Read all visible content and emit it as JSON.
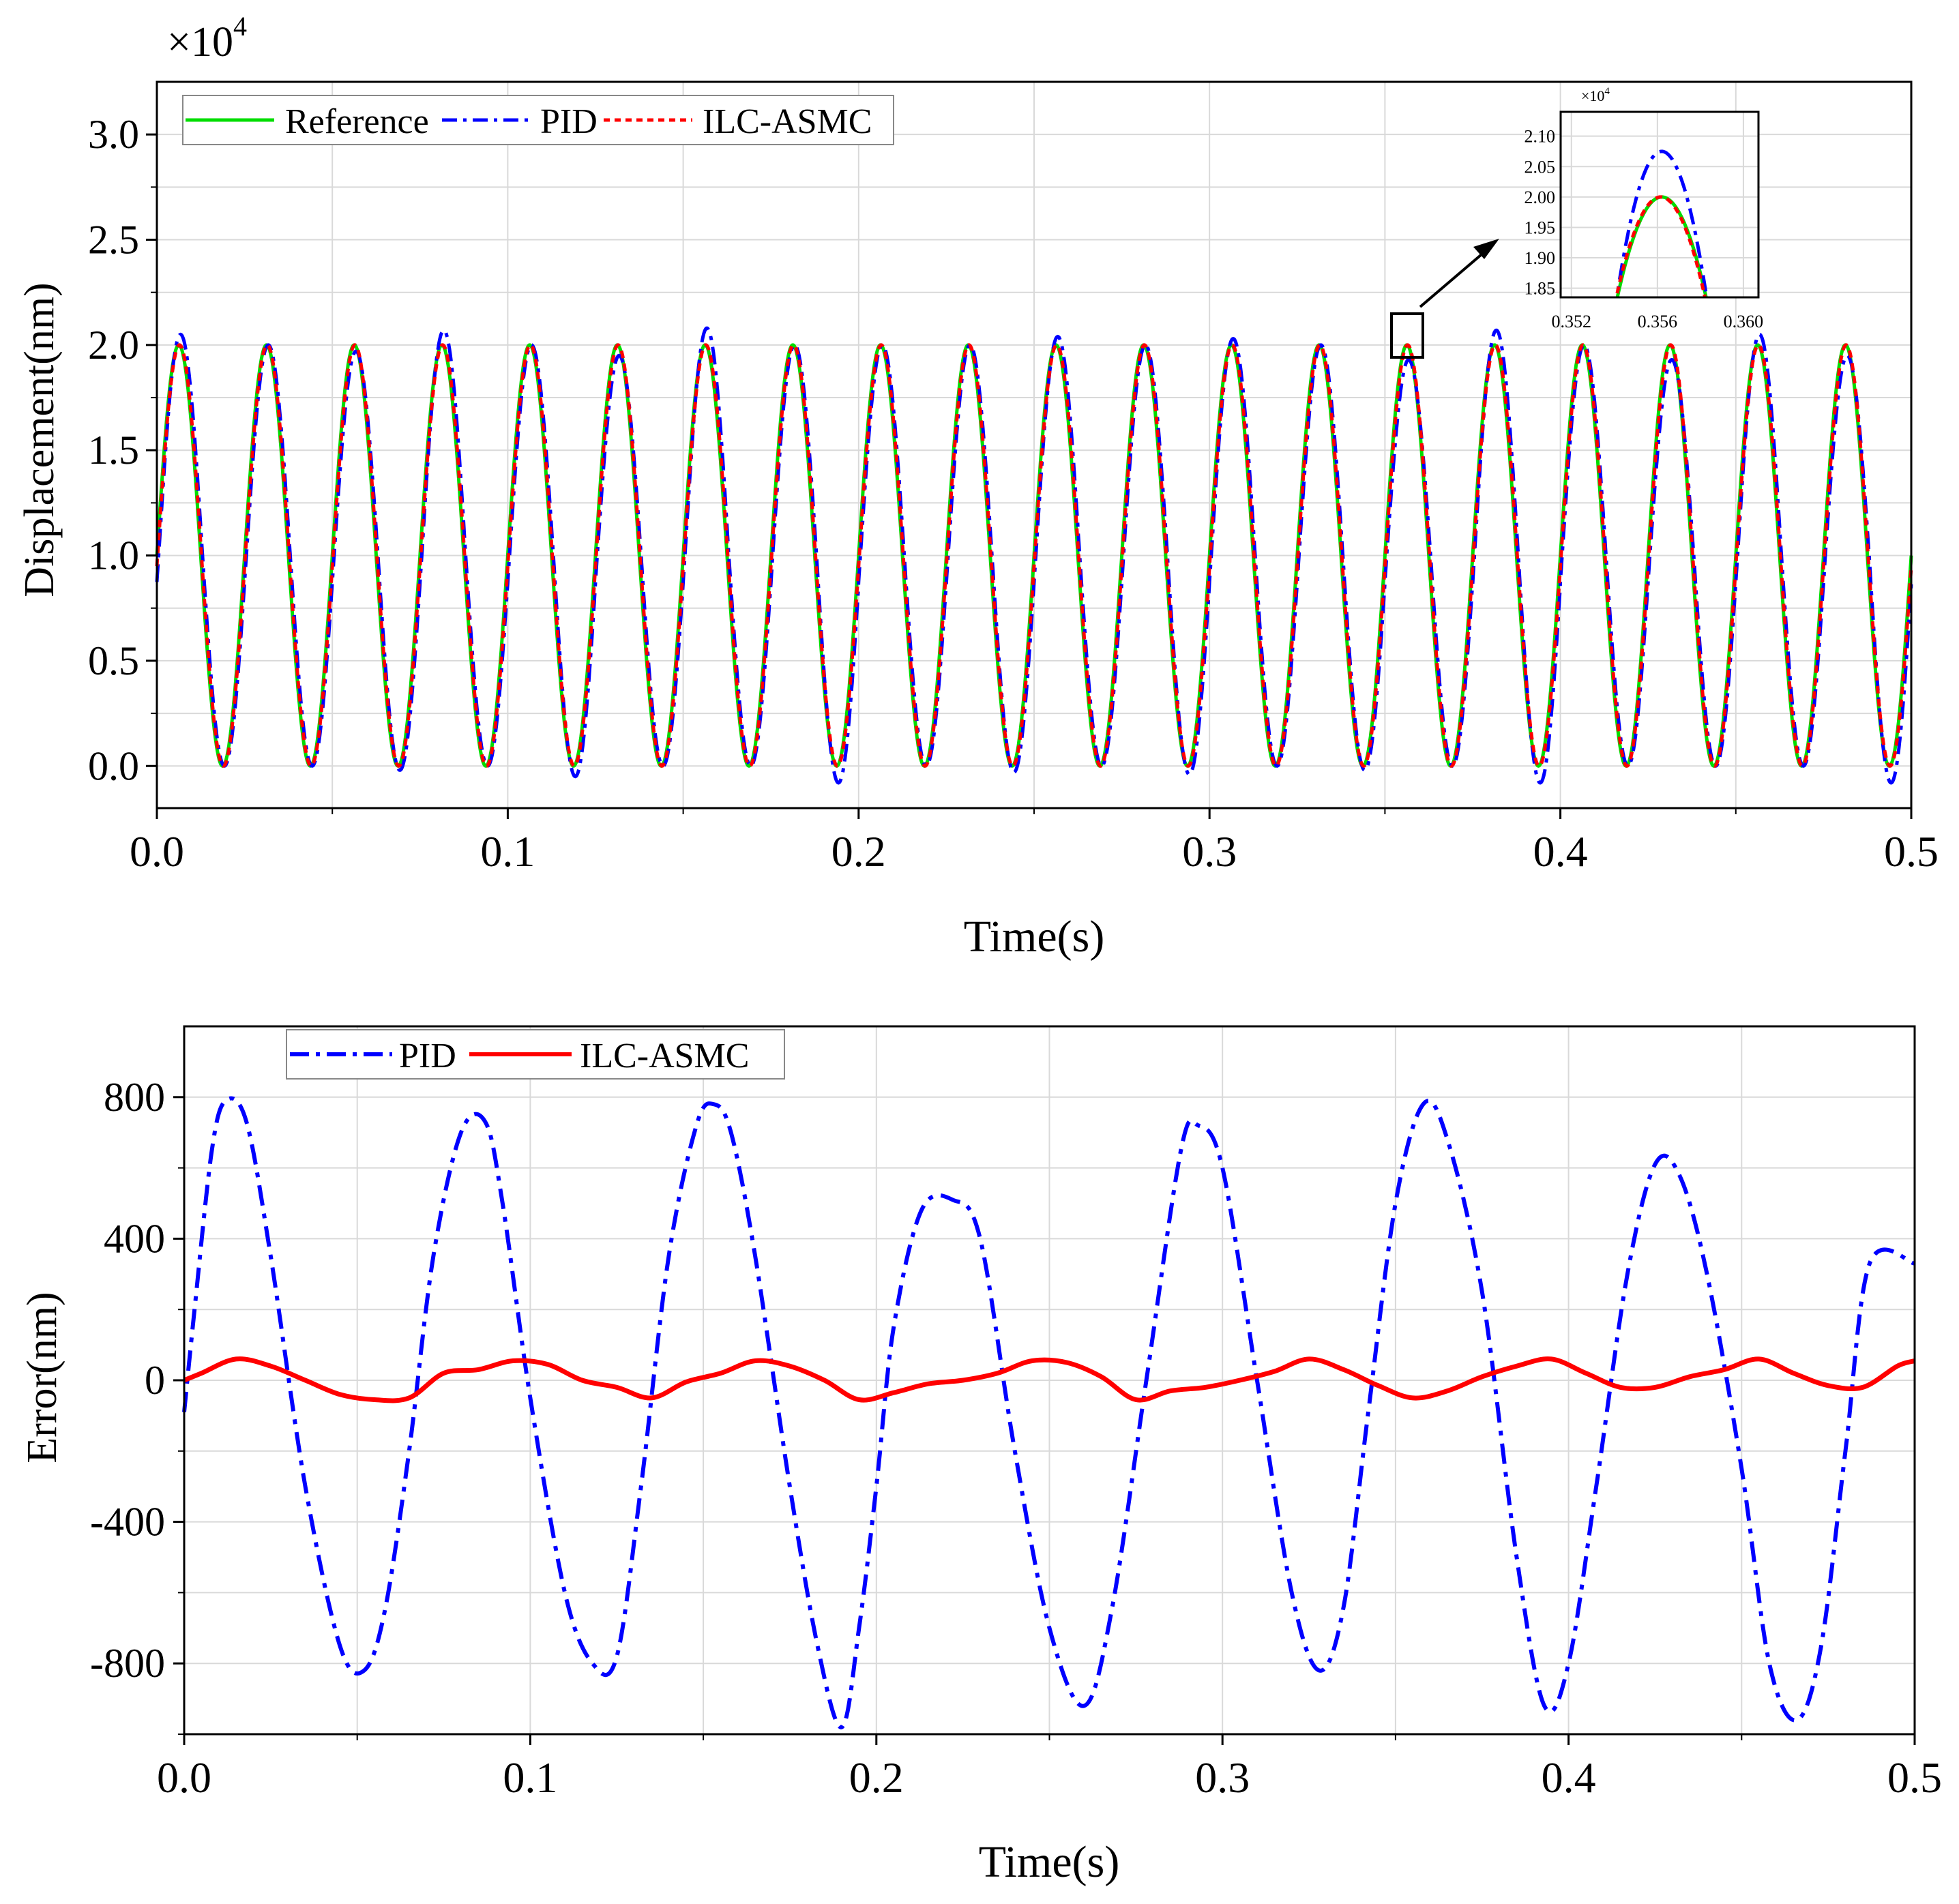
{
  "chart_data": [
    {
      "type": "line",
      "panel": "top",
      "title": "",
      "xlabel": "Time(s)",
      "ylabel": "Displacement(nm)",
      "y_multiplier_label": "×10",
      "y_multiplier_exp": "4",
      "xlim": [
        0,
        0.5
      ],
      "ylim": [
        -0.2,
        3.25
      ],
      "x_ticks": [
        0,
        0.1,
        0.2,
        0.3,
        0.4,
        0.5
      ],
      "x_tick_labels": [
        "0.0",
        "0.1",
        "0.2",
        "0.3",
        "0.4",
        "0.5"
      ],
      "y_ticks": [
        0,
        0.5,
        1.0,
        1.5,
        2.0,
        2.5,
        3.0
      ],
      "y_tick_labels": [
        "0.0",
        "0.5",
        "1.0",
        "1.5",
        "2.0",
        "2.5",
        "3.0"
      ],
      "grid": true,
      "legend_position": "top-left",
      "signal": {
        "frequency_hz": 40,
        "offset": 1.0,
        "amplitude": 1.0,
        "phase_at_zero": "mid-rise"
      },
      "series": [
        {
          "name": "Reference",
          "color": "#00dd00",
          "style": "solid"
        },
        {
          "name": "PID",
          "color": "#0000ff",
          "style": "dashdot",
          "peak_values": [
            2.05,
            2.0,
            1.97,
            2.07,
            2.0,
            1.95,
            2.08,
            2.0,
            2.0,
            2.0,
            2.04,
            2.0,
            2.03,
            2.0,
            1.93,
            2.07,
            2.0,
            1.93,
            2.05,
            1.95
          ],
          "trough_values": [
            0.0,
            0.0,
            -0.02,
            0.0,
            -0.05,
            0.0,
            0.0,
            -0.08,
            0.0,
            -0.03,
            0.0,
            -0.04,
            0.0,
            -0.02,
            0.0,
            -0.08,
            0.0,
            0.0,
            0.0,
            -0.08
          ]
        },
        {
          "name": "ILC-ASMC",
          "color": "#ff0000",
          "style": "dashed"
        }
      ],
      "inset": {
        "x_ticks": [
          0.352,
          0.356,
          0.36
        ],
        "x_tick_labels": [
          "0.352",
          "0.356",
          "0.360"
        ],
        "y_ticks": [
          1.85,
          1.9,
          1.95,
          2.0,
          2.05,
          2.1
        ],
        "y_tick_labels": [
          "1.85",
          "1.90",
          "1.95",
          "2.00",
          "2.05",
          "2.10"
        ],
        "y_multiplier_label": "×10",
        "y_multiplier_exp": "4",
        "xlim": [
          0.3515,
          0.3607
        ],
        "ylim": [
          1.835,
          2.14
        ],
        "zoom_window": {
          "x": [
            0.3535,
            0.3575
          ],
          "y": [
            1.97,
            2.08
          ]
        },
        "pid_peak": 2.075,
        "reference_peak": 2.0,
        "peak_time": 0.3562
      }
    },
    {
      "type": "line",
      "panel": "bottom",
      "title": "",
      "xlabel": "Time(s)",
      "ylabel": "Error(nm)",
      "xlim": [
        0,
        0.5
      ],
      "ylim": [
        -1000,
        1000
      ],
      "x_ticks": [
        0,
        0.1,
        0.2,
        0.3,
        0.4,
        0.5
      ],
      "x_tick_labels": [
        "0.0",
        "0.1",
        "0.2",
        "0.3",
        "0.4",
        "0.5"
      ],
      "y_ticks": [
        -800,
        -400,
        0,
        400,
        800
      ],
      "y_tick_labels": [
        "-800",
        "-400",
        "0",
        "400",
        "800"
      ],
      "grid": true,
      "legend_position": "top-left",
      "series": [
        {
          "name": "PID",
          "color": "#0000ff",
          "style": "dashdot",
          "x": [
            0.0,
            0.003,
            0.008,
            0.012,
            0.018,
            0.025,
            0.035,
            0.045,
            0.052,
            0.058,
            0.065,
            0.072,
            0.08,
            0.087,
            0.092,
            0.1,
            0.11,
            0.118,
            0.125,
            0.132,
            0.14,
            0.148,
            0.153,
            0.158,
            0.165,
            0.175,
            0.183,
            0.19,
            0.195,
            0.2,
            0.205,
            0.213,
            0.222,
            0.23,
            0.24,
            0.25,
            0.26,
            0.268,
            0.278,
            0.288,
            0.293,
            0.3,
            0.31,
            0.32,
            0.328,
            0.335,
            0.342,
            0.35,
            0.358,
            0.365,
            0.375,
            0.385,
            0.393,
            0.4,
            0.408,
            0.417,
            0.425,
            0.432,
            0.44,
            0.45,
            0.458,
            0.466,
            0.473,
            0.48,
            0.487,
            0.5
          ],
          "y": [
            -90,
            200,
            650,
            790,
            730,
            350,
            -300,
            -750,
            -820,
            -650,
            -200,
            350,
            700,
            730,
            500,
            -50,
            -600,
            -800,
            -780,
            -300,
            350,
            720,
            780,
            700,
            350,
            -300,
            -750,
            -980,
            -700,
            -300,
            150,
            480,
            510,
            400,
            -200,
            -700,
            -920,
            -650,
            0,
            650,
            720,
            600,
            0,
            -600,
            -820,
            -640,
            -100,
            500,
            780,
            680,
            250,
            -500,
            -920,
            -800,
            -300,
            300,
            610,
            580,
            300,
            -250,
            -800,
            -960,
            -750,
            -200,
            330,
            330
          ]
        },
        {
          "name": "ILC-ASMC",
          "color": "#ff0000",
          "style": "solid",
          "x": [
            0.0,
            0.005,
            0.015,
            0.025,
            0.035,
            0.045,
            0.055,
            0.065,
            0.075,
            0.085,
            0.095,
            0.105,
            0.115,
            0.125,
            0.135,
            0.145,
            0.155,
            0.165,
            0.175,
            0.185,
            0.195,
            0.205,
            0.215,
            0.225,
            0.235,
            0.245,
            0.255,
            0.265,
            0.275,
            0.285,
            0.295,
            0.305,
            0.315,
            0.325,
            0.335,
            0.345,
            0.355,
            0.365,
            0.375,
            0.385,
            0.395,
            0.405,
            0.415,
            0.425,
            0.435,
            0.445,
            0.455,
            0.465,
            0.475,
            0.485,
            0.495,
            0.5
          ],
          "y": [
            0,
            20,
            60,
            40,
            0,
            -40,
            -55,
            -50,
            20,
            30,
            55,
            45,
            0,
            -20,
            -50,
            -5,
            20,
            55,
            40,
            0,
            -55,
            -35,
            -10,
            0,
            20,
            55,
            50,
            10,
            -55,
            -30,
            -20,
            0,
            25,
            60,
            30,
            -15,
            -50,
            -30,
            10,
            40,
            60,
            20,
            -20,
            -20,
            10,
            30,
            60,
            20,
            -15,
            -20,
            40,
            55
          ]
        }
      ]
    }
  ]
}
